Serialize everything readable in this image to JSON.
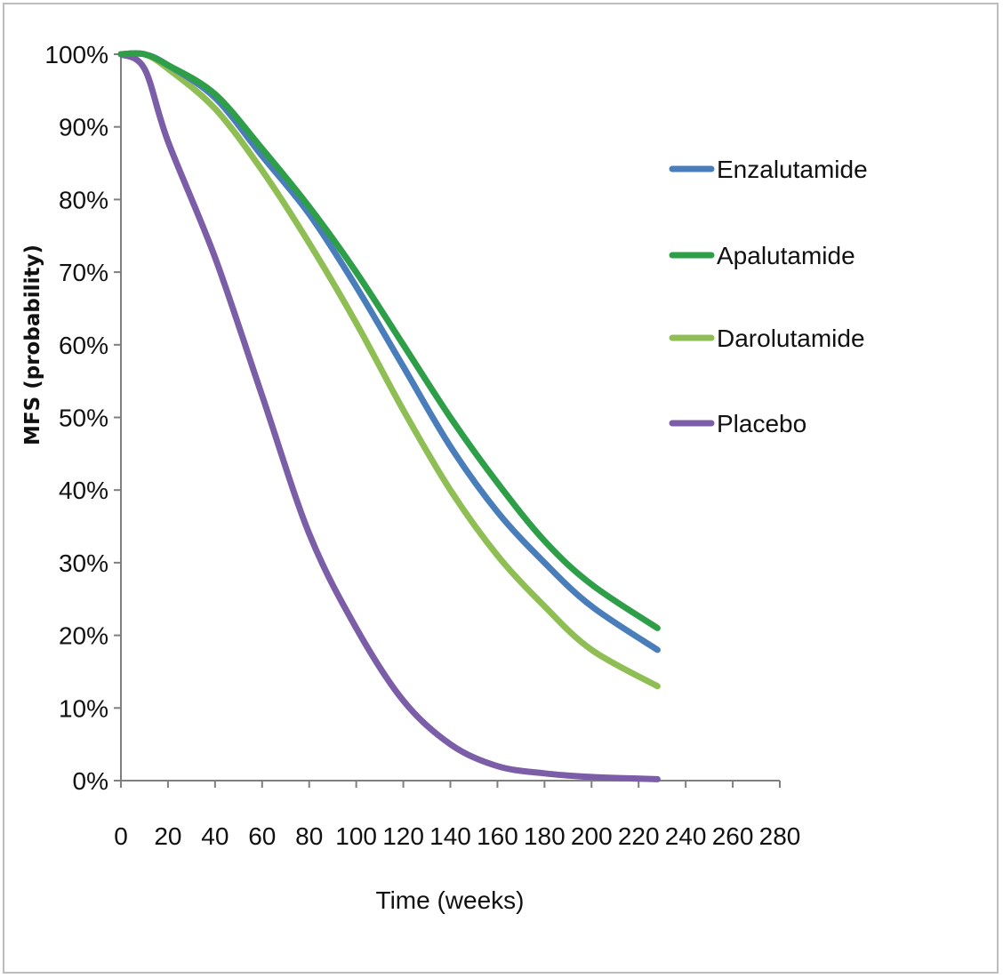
{
  "chart_data": {
    "type": "line",
    "xlabel": "Time (weeks)",
    "ylabel": "MFS (probability)",
    "xlim": [
      0,
      280
    ],
    "ylim": [
      0,
      100
    ],
    "x_ticks": [
      "0",
      "20",
      "40",
      "60",
      "80",
      "100",
      "120",
      "140",
      "160",
      "180",
      "200",
      "220",
      "240",
      "260",
      "280"
    ],
    "y_ticks": [
      "0%",
      "10%",
      "20%",
      "30%",
      "40%",
      "50%",
      "60%",
      "70%",
      "80%",
      "90%",
      "100%"
    ],
    "grid": false,
    "legend_position": "right",
    "x": [
      0,
      10,
      20,
      40,
      60,
      80,
      100,
      120,
      140,
      160,
      180,
      200,
      228
    ],
    "series": [
      {
        "name": "Enzalutamide",
        "color": "#4a7ebb",
        "values": [
          100,
          100,
          98.5,
          94,
          86,
          78,
          68,
          57,
          46,
          37,
          30,
          24,
          18
        ]
      },
      {
        "name": "Apalutamide",
        "color": "#2e9e48",
        "values": [
          100,
          100,
          98.5,
          94.5,
          87,
          79,
          70,
          60,
          50,
          41,
          33,
          27,
          21
        ]
      },
      {
        "name": "Darolutamide",
        "color": "#8fbe55",
        "values": [
          100,
          100,
          98,
          92.5,
          84,
          74,
          63,
          51,
          40,
          31,
          24,
          18,
          13
        ]
      },
      {
        "name": "Placebo",
        "color": "#7b5ea7",
        "values": [
          100,
          98,
          88,
          72,
          53,
          34,
          21,
          11,
          5,
          2,
          1,
          0.5,
          0.2
        ]
      }
    ]
  }
}
